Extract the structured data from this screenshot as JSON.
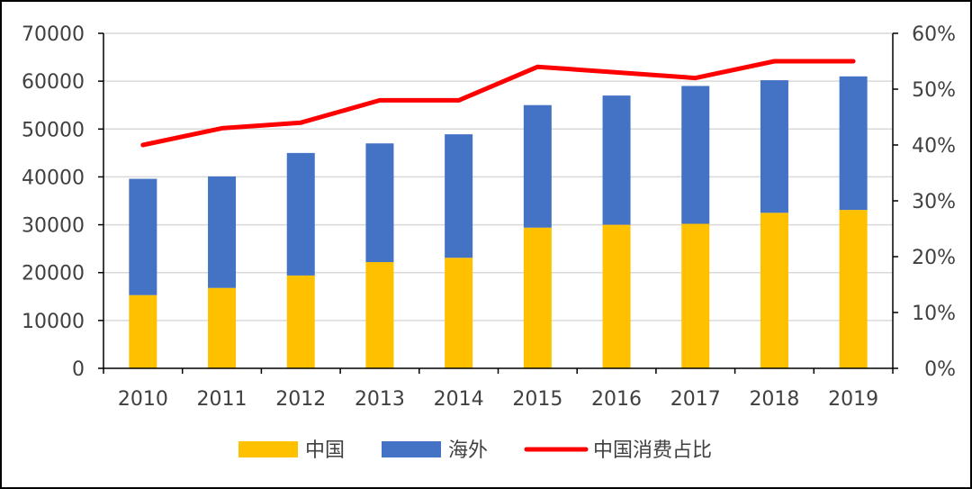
{
  "chart_data": {
    "type": "bar",
    "stacked": true,
    "categories": [
      "2010",
      "2011",
      "2012",
      "2013",
      "2014",
      "2015",
      "2016",
      "2017",
      "2018",
      "2019"
    ],
    "series": [
      {
        "name": "中国",
        "type": "bar",
        "axis": "left",
        "color": "#FFC000",
        "values": [
          15300,
          16800,
          19400,
          22200,
          23100,
          29400,
          30000,
          30200,
          32500,
          33100
        ]
      },
      {
        "name": "海外",
        "type": "bar",
        "axis": "left",
        "color": "#4472C4",
        "values": [
          24300,
          23300,
          25600,
          24800,
          25800,
          25600,
          27000,
          28800,
          27700,
          27900
        ]
      },
      {
        "name": "中国消费占比",
        "type": "line",
        "axis": "right",
        "color": "#FF0000",
        "values": [
          0.4,
          0.43,
          0.44,
          0.48,
          0.48,
          0.54,
          0.53,
          0.52,
          0.55,
          0.55
        ]
      }
    ],
    "y_left": {
      "ylim": [
        0,
        70000
      ],
      "ticks": [
        "0",
        "10000",
        "20000",
        "30000",
        "40000",
        "50000",
        "60000",
        "70000"
      ]
    },
    "y_right": {
      "ylim": [
        0,
        0.6
      ],
      "ticks": [
        "0%",
        "10%",
        "20%",
        "30%",
        "40%",
        "50%",
        "60%"
      ]
    },
    "grid": true,
    "legend_position": "bottom"
  }
}
